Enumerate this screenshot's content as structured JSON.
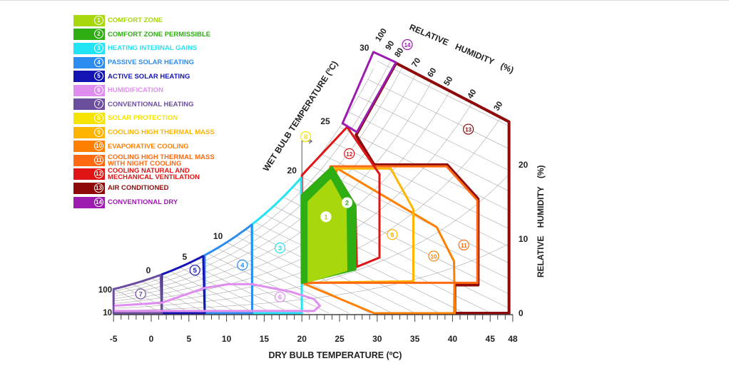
{
  "chart_data": {
    "type": "psychrometric-bioclimatic",
    "xlabel": "DRY BULB TEMPERATURE (ºC)",
    "ylabel_right": "RELATIVE HUMIDITY (%)",
    "wet_bulb_label": "WET BULB TEMPERATURE (ºC)",
    "rh_label": "RELATIVE HUMIDITY (%)",
    "xlim": [
      -5,
      48
    ],
    "ylim": [
      0,
      36
    ],
    "x_ticks": [
      "-5",
      "0",
      "5",
      "10",
      "15",
      "20",
      "25",
      "30",
      "35",
      "40",
      "45",
      "48"
    ],
    "x_tick_values": [
      -5,
      0,
      5,
      10,
      15,
      20,
      25,
      30,
      35,
      40,
      45,
      48
    ],
    "y_ticks": [
      "0",
      "10",
      "20"
    ],
    "y_tick_values": [
      0,
      10,
      20
    ],
    "wet_bulb_ticks": [
      {
        "label": "0",
        "t": 0
      },
      {
        "label": "5",
        "t": 5
      },
      {
        "label": "10",
        "t": 10
      },
      {
        "label": "20",
        "t": 20
      },
      {
        "label": "25",
        "t": 25
      },
      {
        "label": "30",
        "t": 30
      }
    ],
    "left_rh_labels": [
      "100",
      "10"
    ],
    "rh_ticks": [
      "100",
      "90",
      "80",
      "70",
      "60",
      "50",
      "40",
      "30"
    ],
    "zones": [
      {
        "id": "1",
        "name": "COMFORT ZONE",
        "color": "#a8d80c",
        "filled": true,
        "label_at": [
          23.2,
          13
        ],
        "points": [
          [
            20.9,
            4.3
          ],
          [
            20.9,
            15.0
          ],
          [
            23.8,
            17.9
          ],
          [
            25.8,
            14.2
          ],
          [
            25.9,
            5.8
          ]
        ]
      },
      {
        "id": "2",
        "name": "COMFORT ZONE PERMISSIBLE",
        "color": "#2fae14",
        "filled": true,
        "label_at": [
          26,
          14.9
        ],
        "points": [
          [
            20,
            4.1
          ],
          [
            20,
            15.9
          ],
          [
            24,
            19.7
          ],
          [
            27.1,
            14.5
          ],
          [
            27.1,
            5.9
          ]
        ]
      },
      {
        "id": "3",
        "name": "HEATING INTERNAL GAINS",
        "color": "#22e4f4",
        "label_at": [
          17.1,
          8.8
        ],
        "range": [
          13.4,
          20
        ]
      },
      {
        "id": "4",
        "name": "PASSIVE SOLAR HEATING",
        "color": "#2d8cef",
        "label_at": [
          12.1,
          6.5
        ],
        "range": [
          7.1,
          13.4
        ]
      },
      {
        "id": "5",
        "name": "ACTIVE SOLAR HEATING",
        "color": "#1414b4",
        "label_at": [
          5.8,
          5.8
        ],
        "range": [
          1.4,
          7.1
        ]
      },
      {
        "id": "6",
        "name": "HUMIDIFICATION",
        "color": "#df8ef0",
        "label_at": [
          17.1,
          2.2
        ],
        "points": [
          [
            -5,
            1.0
          ],
          [
            1.4,
            1.4
          ],
          [
            7.1,
            3.4
          ],
          [
            10.2,
            3.9
          ],
          [
            13.4,
            3.9
          ],
          [
            18.5,
            2.9
          ],
          [
            21.6,
            1.9
          ],
          [
            22.4,
            1.0
          ],
          [
            21.6,
            0.3
          ],
          [
            -5,
            0.3
          ]
        ]
      },
      {
        "id": "7",
        "name": "CONVENTIONAL HEATING",
        "color": "#6b4e9e",
        "label_at": [
          -1.4,
          2.6
        ],
        "range": [
          -5,
          1.4
        ]
      },
      {
        "id": "8",
        "name": "SOLAR PROTECTION",
        "color": "#f5e400",
        "label_at": [
          20.5,
          23.8
        ]
      },
      {
        "id": "9",
        "name": "COOLING HIGH THERMAL MASS",
        "color": "#ffb400",
        "label_at": [
          32,
          10.6
        ],
        "points": [
          [
            24.4,
            19.5
          ],
          [
            31.8,
            19.5
          ],
          [
            34.8,
            14.0
          ],
          [
            34.8,
            4.3
          ],
          [
            20,
            4.1
          ]
        ]
      },
      {
        "id": "10",
        "name": "EVAPORATIVE COOLING",
        "color": "#ff8000",
        "label_at": [
          37.5,
          7.7
        ],
        "points": [
          [
            24.7,
            19.5
          ],
          [
            37.9,
            11.6
          ],
          [
            40.2,
            7.0
          ],
          [
            40.3,
            0
          ],
          [
            29.6,
            0
          ],
          [
            20,
            4.1
          ]
        ]
      },
      {
        "id": "11",
        "name": "COOLING HIGH THERMAL MASS WITH NIGHT COOLING",
        "color": "#ff6a10",
        "label_at": [
          41.5,
          9.2
        ],
        "points": [
          [
            23.8,
            19.8
          ],
          [
            39.2,
            19.8
          ],
          [
            43.3,
            15.2
          ],
          [
            43.3,
            4.1
          ],
          [
            20,
            4.1
          ]
        ]
      },
      {
        "id": "12",
        "name": "COOLING NATURAL AND MECHANICAL VENTILATION",
        "color": "#e01414",
        "label_at": [
          26.3,
          21.5
        ],
        "points": [
          [
            20,
            15.9
          ],
          [
            20,
            18.6
          ],
          [
            26,
            25.1
          ],
          [
            30.3,
            18.75
          ],
          [
            30.3,
            7.5
          ],
          [
            27.3,
            6.25
          ],
          [
            27.1,
            14.5
          ],
          [
            24,
            19.7
          ]
        ]
      },
      {
        "id": "13",
        "name": "AIR CONDITIONED",
        "color": "#8e0a0a",
        "label_at": [
          42.1,
          24.8
        ],
        "points": [
          [
            32.5,
            33.7
          ],
          [
            47.5,
            25.8
          ],
          [
            47.5,
            0
          ],
          [
            40.3,
            0
          ],
          [
            40.3,
            3.8
          ],
          [
            43.4,
            3.8
          ],
          [
            43.4,
            15.4
          ],
          [
            39.3,
            20
          ],
          [
            29.6,
            20
          ],
          [
            27.2,
            24
          ]
        ]
      },
      {
        "id": "14",
        "name": "CONVENTIONAL DRY",
        "color": "#9c1cb0",
        "label_at": [
          34,
          36.2
        ],
        "points": [
          [
            25.4,
            25.6
          ],
          [
            29.5,
            35.2
          ],
          [
            32.5,
            33.8
          ],
          [
            27.3,
            24.4
          ]
        ]
      }
    ]
  }
}
